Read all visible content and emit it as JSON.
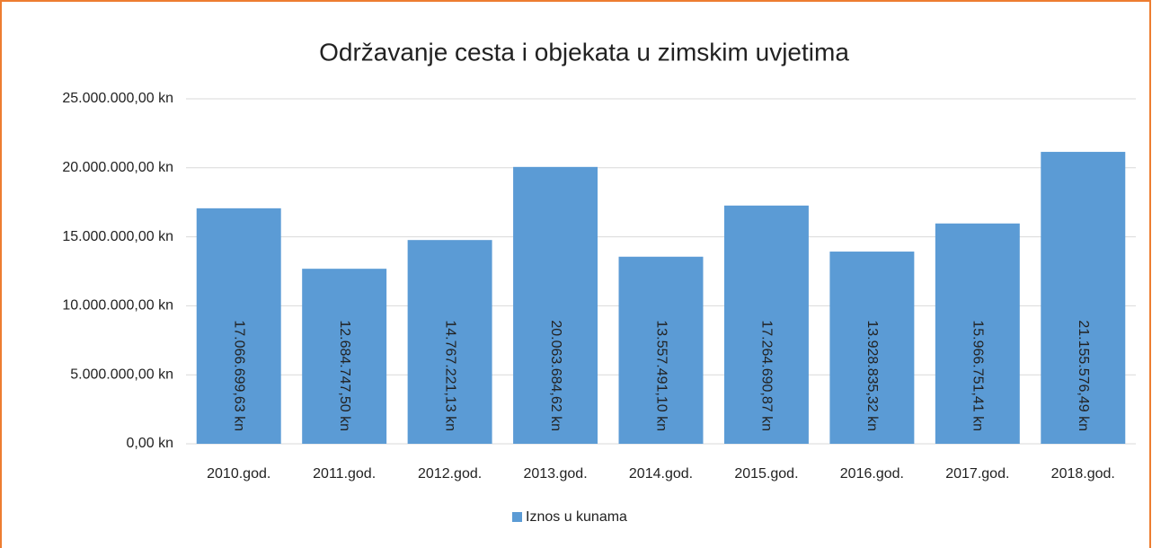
{
  "chart_data": {
    "type": "bar",
    "title": "Održavanje cesta i objekata u zimskim uvjetima",
    "categories": [
      "2010.god.",
      "2011.god.",
      "2012.god.",
      "2013.god.",
      "2014.god.",
      "2015.god.",
      "2016.god.",
      "2017.god.",
      "2018.god."
    ],
    "series": [
      {
        "name": "Iznos u kunama",
        "color": "#5b9bd5",
        "values": [
          17066699.63,
          12684747.5,
          14767221.13,
          20063684.62,
          13557491.1,
          17264690.87,
          13928835.32,
          15966751.41,
          21155576.49
        ],
        "value_labels": [
          "17.066.699,63 kn",
          "12.684.747,50 kn",
          "14.767.221,13 kn",
          "20.063.684,62 kn",
          "13.557.491,10 kn",
          "17.264.690,87 kn",
          "13.928.835,32 kn",
          "15.966.751,41 kn",
          "21.155.576,49 kn"
        ]
      }
    ],
    "ylim": [
      0,
      25000000
    ],
    "yticks": [
      {
        "value": 0,
        "label": "0,00 kn"
      },
      {
        "value": 5000000,
        "label": "5.000.000,00 kn"
      },
      {
        "value": 10000000,
        "label": "10.000.000,00 kn"
      },
      {
        "value": 15000000,
        "label": "15.000.000,00 kn"
      },
      {
        "value": 20000000,
        "label": "20.000.000,00 kn"
      },
      {
        "value": 25000000,
        "label": "25.000.000,00 kn"
      }
    ],
    "grid": true,
    "legend": "bottom"
  }
}
